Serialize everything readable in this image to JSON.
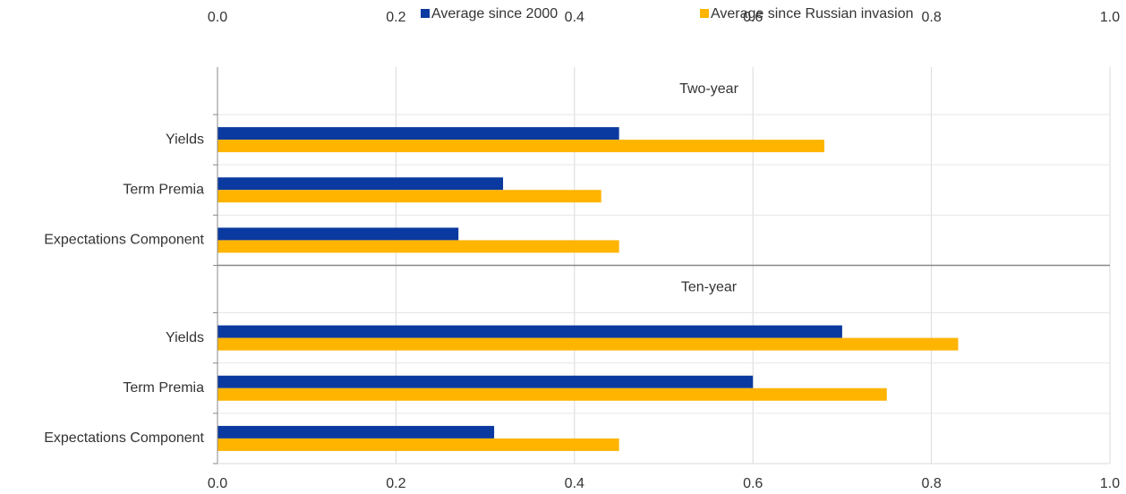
{
  "chart_data": {
    "type": "bar",
    "orientation": "horizontal",
    "legend": "top",
    "grid": true,
    "series": [
      {
        "name": "Average since 2000",
        "color": "#0a3a9f"
      },
      {
        "name": "Average since Russian invasion",
        "color": "#ffb400"
      }
    ],
    "xlim": [
      0,
      1
    ],
    "xticks": [
      {
        "value": 0,
        "label": "0.0"
      },
      0.2,
      0.4,
      0.6,
      0.8,
      {
        "value": 1,
        "label": "1.0"
      }
    ],
    "panels": [
      {
        "title": "Two-year",
        "categories": [
          "Yields",
          "Term Premia",
          "Expectations Component"
        ],
        "series": [
          {
            "values": [
              0.45,
              0.32,
              0.27
            ]
          },
          {
            "values": [
              0.68,
              0.43,
              0.45
            ]
          }
        ]
      },
      {
        "title": "Ten-year",
        "categories": [
          "Yields",
          "Term Premia",
          "Expectations Component"
        ],
        "series": [
          {
            "values": [
              0.7,
              0.6,
              0.31
            ]
          },
          {
            "values": [
              0.83,
              0.75,
              0.45
            ]
          }
        ]
      }
    ]
  }
}
